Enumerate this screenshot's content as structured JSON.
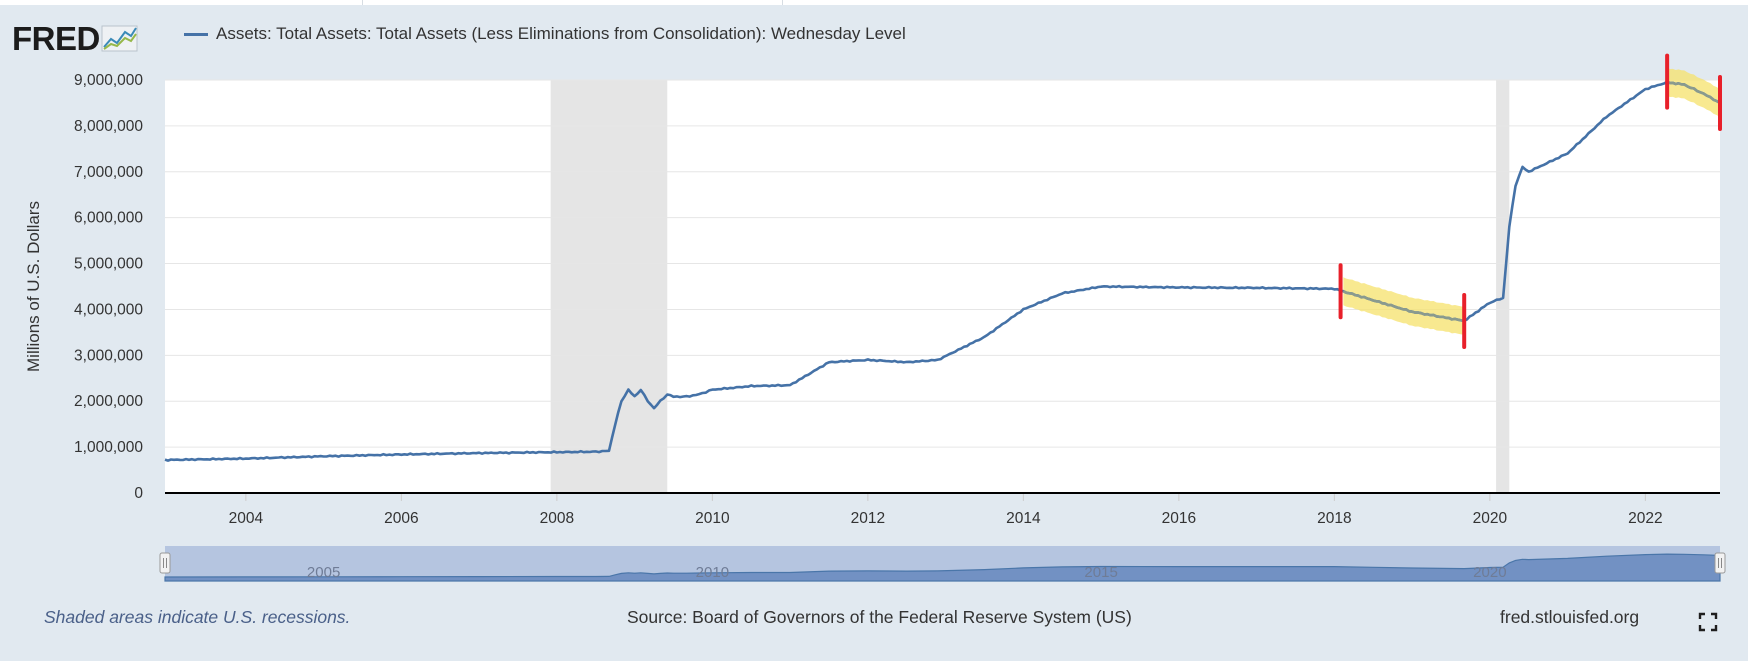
{
  "header": {
    "logo_text": "FRED",
    "logo_mark_icon": "line-chart-icon",
    "series_label": "Assets: Total Assets: Total Assets (Less Eliminations from Consolidation): Wednesday Level",
    "series_color": "#4572a7"
  },
  "footer": {
    "note": "Shaded areas indicate U.S. recessions.",
    "source": "Source: Board of Governors of the Federal Reserve System (US)",
    "site": "fred.stlouisfed.org",
    "fullscreen_icon": "fullscreen-icon"
  },
  "chart_data": {
    "type": "line",
    "title": "Assets: Total Assets: Total Assets (Less Eliminations from Consolidation): Wednesday Level",
    "ylabel": "Millions of U.S. Dollars",
    "xlabel": "",
    "xlim": [
      2002.96,
      2022.96
    ],
    "ylim": [
      0,
      9000000
    ],
    "yticks": [
      0,
      1000000,
      2000000,
      3000000,
      4000000,
      5000000,
      6000000,
      7000000,
      8000000,
      9000000
    ],
    "ytick_labels": [
      "0",
      "1,000,000",
      "2,000,000",
      "3,000,000",
      "4,000,000",
      "5,000,000",
      "6,000,000",
      "7,000,000",
      "8,000,000",
      "9,000,000"
    ],
    "xticks": [
      2004,
      2006,
      2008,
      2010,
      2012,
      2014,
      2016,
      2018,
      2020,
      2022
    ],
    "xtick_labels": [
      "2004",
      "2006",
      "2008",
      "2010",
      "2012",
      "2014",
      "2016",
      "2018",
      "2020",
      "2022"
    ],
    "grid": true,
    "recessions": [
      [
        2007.92,
        2009.42
      ],
      [
        2020.08,
        2020.25
      ]
    ],
    "highlights": [
      [
        2018.08,
        2019.67
      ],
      [
        2022.28,
        2022.96
      ]
    ],
    "highlight_color": "#f5e26b",
    "highlight_marker_color": "#e8202a",
    "navigator_labels": [
      {
        "x": 2005,
        "label": "2005"
      },
      {
        "x": 2010,
        "label": "2010"
      },
      {
        "x": 2015,
        "label": "2015"
      },
      {
        "x": 2020,
        "label": "2020"
      }
    ],
    "series": [
      {
        "name": "Assets: Total Assets: Total Assets (Less Eliminations from Consolidation): Wednesday Level",
        "color": "#4572a7",
        "points": [
          [
            2002.96,
            720000
          ],
          [
            2004.0,
            750000
          ],
          [
            2005.0,
            800000
          ],
          [
            2006.0,
            840000
          ],
          [
            2007.0,
            870000
          ],
          [
            2008.0,
            890000
          ],
          [
            2008.5,
            900000
          ],
          [
            2008.67,
            920000
          ],
          [
            2008.75,
            1500000
          ],
          [
            2008.83,
            2000000
          ],
          [
            2008.92,
            2250000
          ],
          [
            2009.0,
            2100000
          ],
          [
            2009.08,
            2250000
          ],
          [
            2009.17,
            2000000
          ],
          [
            2009.25,
            1850000
          ],
          [
            2009.33,
            2000000
          ],
          [
            2009.42,
            2150000
          ],
          [
            2009.5,
            2100000
          ],
          [
            2009.67,
            2100000
          ],
          [
            2009.83,
            2150000
          ],
          [
            2010.0,
            2250000
          ],
          [
            2010.5,
            2330000
          ],
          [
            2011.0,
            2350000
          ],
          [
            2011.5,
            2850000
          ],
          [
            2012.0,
            2900000
          ],
          [
            2012.5,
            2850000
          ],
          [
            2012.9,
            2900000
          ],
          [
            2013.5,
            3400000
          ],
          [
            2014.0,
            4000000
          ],
          [
            2014.5,
            4350000
          ],
          [
            2015.0,
            4500000
          ],
          [
            2016.0,
            4480000
          ],
          [
            2017.0,
            4470000
          ],
          [
            2018.0,
            4450000
          ],
          [
            2018.5,
            4200000
          ],
          [
            2019.0,
            3950000
          ],
          [
            2019.67,
            3750000
          ],
          [
            2020.0,
            4150000
          ],
          [
            2020.17,
            4250000
          ],
          [
            2020.25,
            5800000
          ],
          [
            2020.33,
            6700000
          ],
          [
            2020.42,
            7100000
          ],
          [
            2020.5,
            7000000
          ],
          [
            2021.0,
            7400000
          ],
          [
            2021.5,
            8200000
          ],
          [
            2022.0,
            8800000
          ],
          [
            2022.28,
            8950000
          ],
          [
            2022.5,
            8900000
          ],
          [
            2022.75,
            8700000
          ],
          [
            2022.96,
            8500000
          ]
        ]
      }
    ]
  }
}
